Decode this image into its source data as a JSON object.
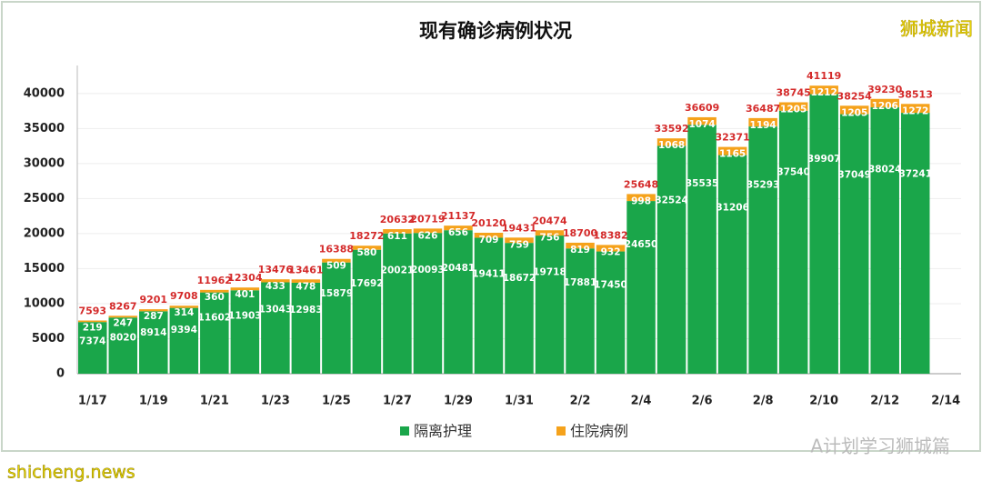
{
  "chart_data": {
    "type": "stacked_bar",
    "title": "现有确诊病例状况",
    "categories": [
      "1/17",
      null,
      "1/19",
      null,
      "1/21",
      null,
      "1/23",
      null,
      "1/25",
      null,
      "1/27",
      null,
      "1/29",
      null,
      "1/31",
      null,
      "2/2",
      null,
      "2/4",
      null,
      "2/6",
      null,
      "2/8",
      null,
      "2/10",
      null,
      "2/12",
      null,
      "2/14"
    ],
    "series": [
      {
        "name": "隔离护理",
        "color": "#1aa64a",
        "values": [
          7374,
          8020,
          8914,
          9394,
          11602,
          11903,
          13043,
          12983,
          15879,
          17692,
          20021,
          20093,
          20481,
          19411,
          18672,
          19718,
          17881,
          17450,
          24650,
          32524,
          35535,
          31206,
          35293,
          37540,
          39907,
          37049,
          38024,
          37241,
          null
        ]
      },
      {
        "name": "住院病例",
        "color": "#f5a21b",
        "values": [
          219,
          247,
          287,
          314,
          360,
          401,
          433,
          478,
          509,
          580,
          611,
          626,
          656,
          709,
          759,
          756,
          819,
          932,
          998,
          1068,
          1074,
          1165,
          1194,
          1205,
          1212,
          1205,
          1206,
          1272,
          null
        ]
      }
    ],
    "totals": [
      7593,
      8267,
      9201,
      9708,
      11962,
      12304,
      13476,
      13461,
      16388,
      18272,
      20632,
      20719,
      21137,
      20120,
      19431,
      20474,
      18700,
      18382,
      25648,
      33592,
      36609,
      32371,
      36487,
      38745,
      41119,
      38254,
      39230,
      38513,
      null
    ],
    "ylim": [
      0,
      44000
    ],
    "yticks": [
      0,
      5000,
      10000,
      15000,
      20000,
      25000,
      30000,
      35000,
      40000
    ],
    "grid": true,
    "legend": "bottom"
  },
  "brand": "狮城新闻",
  "watermark": "A计划学习狮城篇",
  "site": "shicheng.news"
}
